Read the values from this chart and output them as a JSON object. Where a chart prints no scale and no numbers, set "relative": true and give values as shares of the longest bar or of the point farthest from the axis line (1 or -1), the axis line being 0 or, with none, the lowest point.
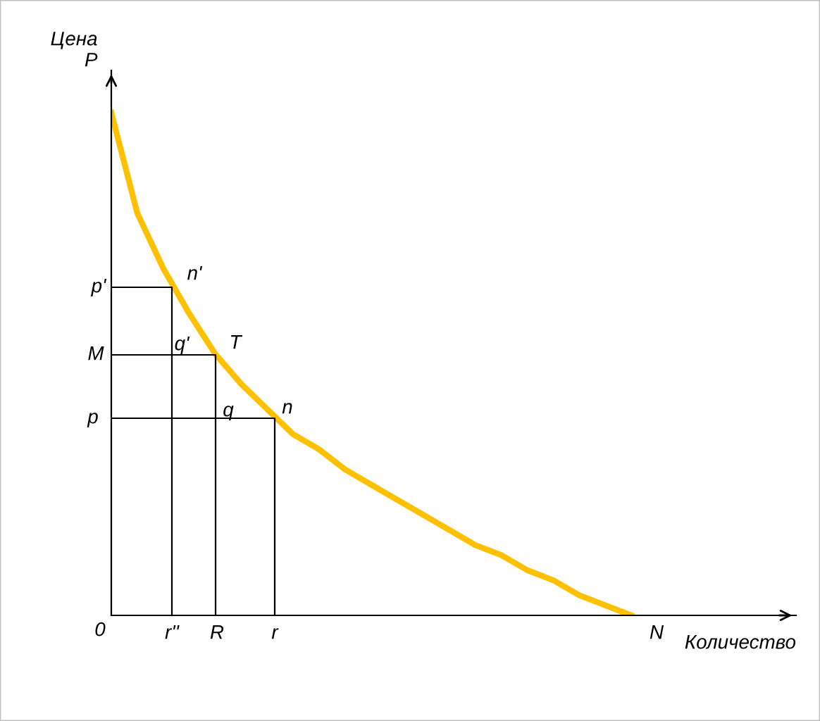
{
  "chart_data": {
    "type": "line",
    "relative": true,
    "xlabel": "Количество",
    "ylabel": "Цена\nP",
    "categories": [
      null,
      null,
      null,
      null,
      null,
      null,
      null,
      null,
      null,
      null,
      null,
      null,
      null,
      null,
      null,
      null,
      null,
      null,
      null,
      null,
      null
    ],
    "series": [
      {
        "color": "#ffc000",
        "values": [
          1,
          0.8,
          0.69,
          0.6,
          0.52,
          0.46,
          0.41,
          0.36,
          0.33,
          0.29,
          0.26,
          0.23,
          0.2,
          0.17,
          0.14,
          0.12,
          0.09,
          0.07,
          0.04,
          0.02,
          0
        ]
      }
    ],
    "annotations": [
      "p'",
      "M",
      "p",
      "0",
      "r''",
      "R",
      "r",
      "N",
      "n'",
      "T",
      "n",
      "q'",
      "q"
    ],
    "marker": "none",
    "line_style": "solid",
    "legend": false
  }
}
